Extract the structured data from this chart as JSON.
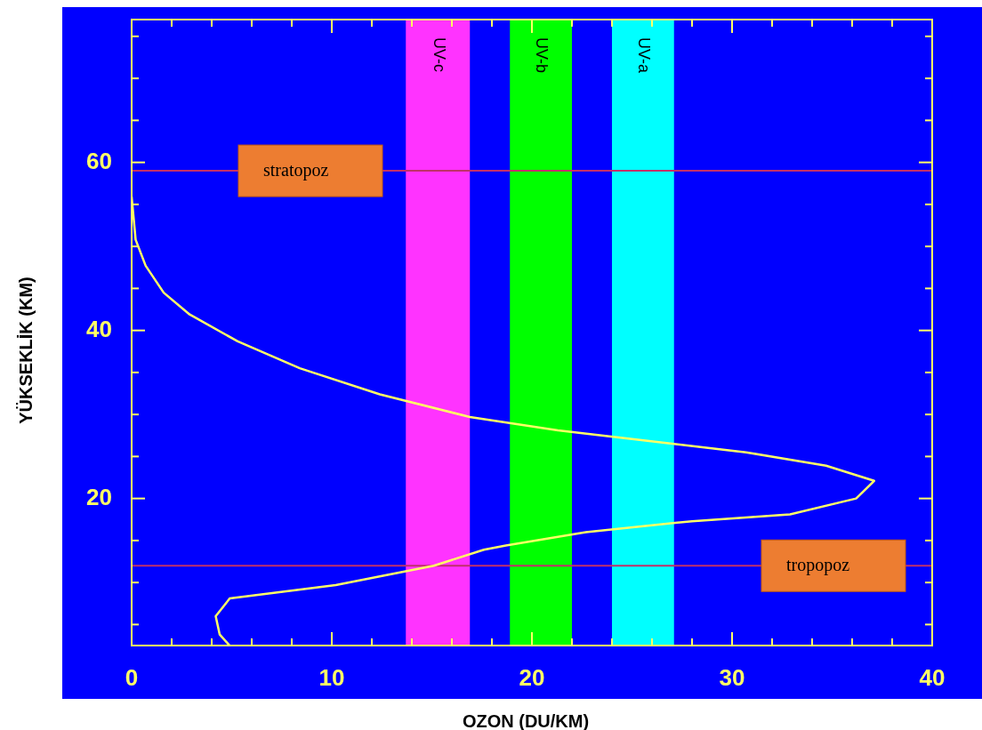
{
  "chart_data": {
    "type": "line",
    "xlabel": "OZON (DU/KM)",
    "ylabel": "YÜKSEKLİK (KM)",
    "xlim": [
      0,
      40
    ],
    "ylim": [
      2.5,
      77
    ],
    "xticks": [
      0,
      {
        "value": 2,
        "label": null
      },
      {
        "value": 4,
        "label": null
      },
      {
        "value": 6,
        "label": null
      },
      {
        "value": 8,
        "label": null
      },
      10,
      {
        "value": 12,
        "label": null
      },
      {
        "value": 14,
        "label": null
      },
      {
        "value": 16,
        "label": null
      },
      {
        "value": 18,
        "label": null
      },
      20,
      {
        "value": 22,
        "label": null
      },
      {
        "value": 24,
        "label": null
      },
      {
        "value": 26,
        "label": null
      },
      {
        "value": 28,
        "label": null
      },
      30,
      {
        "value": 32,
        "label": null
      },
      {
        "value": 34,
        "label": null
      },
      {
        "value": 36,
        "label": null
      },
      {
        "value": 38,
        "label": null
      },
      40
    ],
    "yticks": [
      {
        "value": 5,
        "label": null
      },
      {
        "value": 10,
        "label": null
      },
      {
        "value": 15,
        "label": null
      },
      20,
      {
        "value": 25,
        "label": null
      },
      {
        "value": 30,
        "label": null
      },
      {
        "value": 35,
        "label": null
      },
      40,
      {
        "value": 45,
        "label": null
      },
      {
        "value": 50,
        "label": null
      },
      {
        "value": 55,
        "label": null
      },
      60,
      {
        "value": 65,
        "label": null
      },
      {
        "value": 70,
        "label": null
      },
      {
        "value": 75,
        "label": null
      }
    ],
    "grid": false,
    "line_style": "solid",
    "series": [
      {
        "color": "#ffff66",
        "x": [
          0,
          0.2,
          0.7,
          1.6,
          2.9,
          5.3,
          8.4,
          12.4,
          16.9,
          21.3,
          27.1,
          30.7,
          34.7,
          37.1,
          36.2,
          32.9,
          28,
          22.7,
          18.7,
          17.6,
          15.1,
          10.2,
          4.9,
          4.2,
          4.4,
          4.9
        ],
        "values": [
          55.9,
          50.8,
          47.7,
          44.5,
          41.9,
          38.7,
          35.5,
          32.4,
          29.7,
          28.1,
          26.5,
          25.5,
          23.9,
          22.1,
          20,
          18.1,
          17.3,
          16,
          14.4,
          13.9,
          12,
          9.7,
          8.1,
          6,
          3.8,
          2.5
        ]
      }
    ],
    "bands": [
      {
        "axis": "x",
        "from": 13.7,
        "to": 16.9,
        "label": "UV-c",
        "color": "#ff33ff"
      },
      {
        "axis": "x",
        "from": 18.9,
        "to": 22,
        "label": "UV-b",
        "color": "#00ff00"
      },
      {
        "axis": "x",
        "from": 24,
        "to": 27.1,
        "label": "UV-a",
        "color": "#00ffff"
      }
    ],
    "ref_lines": [
      {
        "axis": "y",
        "value": 59,
        "label": "stratopoz",
        "color": "#c0306a"
      },
      {
        "axis": "y",
        "value": 12,
        "label": "tropopoz",
        "color": "#c0306a"
      }
    ]
  }
}
